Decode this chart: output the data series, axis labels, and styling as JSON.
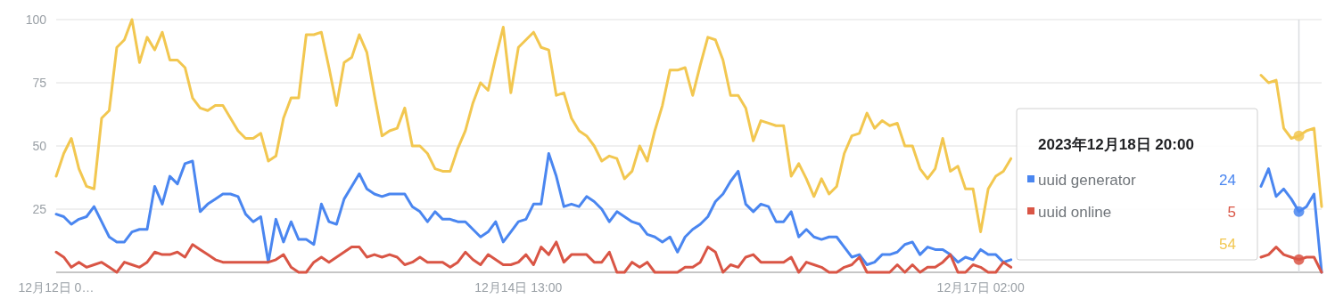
{
  "chart_data": {
    "type": "line",
    "x": [
      "2023-12-12T00:00",
      "2023-12-12T01:00",
      "2023-12-12T02:00",
      "2023-12-12T03:00",
      "2023-12-12T04:00",
      "2023-12-12T05:00",
      "2023-12-12T06:00",
      "2023-12-12T07:00",
      "2023-12-12T08:00",
      "2023-12-12T09:00",
      "2023-12-12T10:00",
      "2023-12-12T11:00",
      "2023-12-12T12:00",
      "2023-12-12T13:00",
      "2023-12-12T14:00",
      "2023-12-12T15:00",
      "2023-12-12T16:00",
      "2023-12-12T17:00",
      "2023-12-12T18:00",
      "2023-12-12T19:00",
      "2023-12-12T20:00",
      "2023-12-12T21:00",
      "2023-12-12T22:00",
      "2023-12-12T23:00",
      "2023-12-13T00:00",
      "2023-12-13T01:00",
      "2023-12-13T02:00",
      "2023-12-13T03:00",
      "2023-12-13T04:00",
      "2023-12-13T05:00",
      "2023-12-13T06:00",
      "2023-12-13T07:00",
      "2023-12-13T08:00",
      "2023-12-13T09:00",
      "2023-12-13T10:00",
      "2023-12-13T11:00",
      "2023-12-13T12:00",
      "2023-12-13T13:00",
      "2023-12-13T14:00",
      "2023-12-13T15:00",
      "2023-12-13T16:00",
      "2023-12-13T17:00",
      "2023-12-13T18:00",
      "2023-12-13T19:00",
      "2023-12-13T20:00",
      "2023-12-13T21:00",
      "2023-12-13T22:00",
      "2023-12-13T23:00",
      "2023-12-14T00:00",
      "2023-12-14T01:00",
      "2023-12-14T02:00",
      "2023-12-14T03:00",
      "2023-12-14T04:00",
      "2023-12-14T05:00",
      "2023-12-14T06:00",
      "2023-12-14T07:00",
      "2023-12-14T08:00",
      "2023-12-14T09:00",
      "2023-12-14T10:00",
      "2023-12-14T11:00",
      "2023-12-14T12:00",
      "2023-12-14T13:00",
      "2023-12-14T14:00",
      "2023-12-14T15:00",
      "2023-12-14T16:00",
      "2023-12-14T17:00",
      "2023-12-14T18:00",
      "2023-12-14T19:00",
      "2023-12-14T20:00",
      "2023-12-14T21:00",
      "2023-12-14T22:00",
      "2023-12-14T23:00",
      "2023-12-15T00:00",
      "2023-12-15T01:00",
      "2023-12-15T02:00",
      "2023-12-15T03:00",
      "2023-12-15T04:00",
      "2023-12-15T05:00",
      "2023-12-15T06:00",
      "2023-12-15T07:00",
      "2023-12-15T08:00",
      "2023-12-15T09:00",
      "2023-12-15T10:00",
      "2023-12-15T11:00",
      "2023-12-15T12:00",
      "2023-12-15T13:00",
      "2023-12-15T14:00",
      "2023-12-15T15:00",
      "2023-12-15T16:00",
      "2023-12-15T17:00",
      "2023-12-15T18:00",
      "2023-12-15T19:00",
      "2023-12-15T20:00",
      "2023-12-15T21:00",
      "2023-12-15T22:00",
      "2023-12-15T23:00",
      "2023-12-16T00:00",
      "2023-12-16T01:00",
      "2023-12-16T02:00",
      "2023-12-16T03:00",
      "2023-12-16T04:00",
      "2023-12-16T05:00",
      "2023-12-16T06:00",
      "2023-12-16T07:00",
      "2023-12-16T08:00",
      "2023-12-16T09:00",
      "2023-12-16T10:00",
      "2023-12-16T11:00",
      "2023-12-16T12:00",
      "2023-12-16T13:00",
      "2023-12-16T14:00",
      "2023-12-16T15:00",
      "2023-12-16T16:00",
      "2023-12-16T17:00",
      "2023-12-16T18:00",
      "2023-12-16T19:00",
      "2023-12-16T20:00",
      "2023-12-16T21:00",
      "2023-12-16T22:00",
      "2023-12-16T23:00",
      "2023-12-17T00:00",
      "2023-12-17T01:00",
      "2023-12-17T02:00",
      "2023-12-17T03:00",
      "2023-12-17T04:00",
      "2023-12-17T05:00",
      "2023-12-17T06:00",
      "2023-12-17T07:00",
      "2023-12-17T08:00",
      "2023-12-17T09:00",
      "2023-12-17T10:00",
      "2023-12-17T11:00",
      "2023-12-17T12:00",
      "2023-12-17T13:00",
      "2023-12-17T14:00",
      "2023-12-17T15:00",
      "2023-12-17T16:00",
      "2023-12-17T17:00",
      "2023-12-17T18:00",
      "2023-12-17T19:00",
      "2023-12-17T20:00",
      "2023-12-17T21:00",
      "2023-12-17T22:00",
      "2023-12-17T23:00",
      "2023-12-18T00:00",
      "2023-12-18T01:00",
      "2023-12-18T02:00",
      "2023-12-18T03:00",
      "2023-12-18T04:00",
      "2023-12-18T05:00",
      "2023-12-18T06:00",
      "2023-12-18T07:00",
      "2023-12-18T08:00",
      "2023-12-18T09:00",
      "2023-12-18T10:00",
      "2023-12-18T11:00",
      "2023-12-18T12:00",
      "2023-12-18T13:00",
      "2023-12-18T14:00",
      "2023-12-18T15:00",
      "2023-12-18T16:00",
      "2023-12-18T17:00",
      "2023-12-18T18:00",
      "2023-12-18T19:00",
      "2023-12-18T20:00",
      "2023-12-18T21:00",
      "2023-12-18T22:00",
      "2023-12-18T23:00"
    ],
    "series": [
      {
        "name": "uuid generator",
        "color": "#4a86f0",
        "values": [
          23,
          22,
          19,
          21,
          22,
          26,
          20,
          14,
          12,
          12,
          16,
          17,
          17,
          34,
          27,
          38,
          35,
          43,
          44,
          24,
          27,
          29,
          31,
          31,
          30,
          23,
          20,
          22,
          4,
          21,
          12,
          20,
          13,
          13,
          11,
          27,
          20,
          19,
          29,
          34,
          39,
          33,
          31,
          30,
          31,
          31,
          31,
          26,
          24,
          20,
          24,
          21,
          21,
          20,
          20,
          17,
          14,
          16,
          20,
          12,
          16,
          20,
          21,
          27,
          27,
          47,
          38,
          26,
          27,
          26,
          30,
          28,
          25,
          20,
          24,
          22,
          20,
          19,
          15,
          14,
          12,
          14,
          8,
          14,
          17,
          19,
          22,
          28,
          31,
          36,
          40,
          27,
          24,
          27,
          26,
          20,
          20,
          24,
          14,
          17,
          14,
          13,
          14,
          14,
          10,
          6,
          7,
          3,
          4,
          7,
          7,
          8,
          11,
          12,
          7,
          10,
          9,
          9,
          7,
          4,
          6,
          5,
          9,
          7,
          7,
          4,
          5,
          null,
          null,
          null,
          null,
          null,
          null,
          null,
          null,
          null,
          null,
          null,
          null,
          null,
          null,
          null,
          null,
          null,
          null,
          null,
          null,
          null,
          null,
          null,
          null,
          null,
          null,
          null,
          null,
          null,
          null,
          null,
          null,
          34,
          41,
          30,
          33,
          29,
          24,
          26,
          31,
          0
        ]
      },
      {
        "name": "uuid online",
        "color": "#d95545",
        "values": [
          8,
          6,
          2,
          4,
          2,
          3,
          4,
          2,
          0,
          4,
          3,
          2,
          4,
          8,
          7,
          7,
          8,
          6,
          11,
          9,
          7,
          5,
          4,
          4,
          4,
          4,
          4,
          4,
          4,
          5,
          7,
          2,
          0,
          0,
          4,
          6,
          4,
          6,
          8,
          10,
          10,
          6,
          7,
          6,
          7,
          6,
          3,
          4,
          6,
          4,
          4,
          4,
          2,
          4,
          8,
          5,
          3,
          7,
          5,
          3,
          3,
          4,
          7,
          3,
          10,
          7,
          12,
          4,
          7,
          7,
          7,
          4,
          4,
          8,
          0,
          0,
          4,
          2,
          4,
          0,
          0,
          0,
          0,
          2,
          2,
          4,
          10,
          8,
          0,
          3,
          2,
          6,
          7,
          4,
          4,
          4,
          4,
          6,
          0,
          4,
          3,
          2,
          0,
          0,
          2,
          3,
          6,
          0,
          0,
          0,
          0,
          3,
          0,
          3,
          0,
          2,
          2,
          4,
          7,
          0,
          0,
          3,
          2,
          0,
          0,
          4,
          2,
          null,
          null,
          null,
          null,
          null,
          null,
          null,
          null,
          null,
          null,
          null,
          null,
          null,
          null,
          null,
          null,
          null,
          null,
          null,
          null,
          null,
          null,
          null,
          null,
          null,
          null,
          null,
          null,
          null,
          null,
          null,
          null,
          6,
          7,
          10,
          7,
          6,
          5,
          6,
          6,
          0
        ]
      },
      {
        "color": "#f2c750",
        "values": [
          38,
          47,
          53,
          41,
          34,
          33,
          61,
          64,
          89,
          92,
          100,
          83,
          93,
          88,
          95,
          84,
          84,
          81,
          69,
          65,
          64,
          66,
          66,
          61,
          56,
          53,
          53,
          55,
          44,
          46,
          61,
          69,
          69,
          94,
          94,
          95,
          81,
          66,
          83,
          85,
          94,
          87,
          70,
          54,
          56,
          57,
          65,
          50,
          50,
          47,
          41,
          40,
          40,
          49,
          56,
          67,
          75,
          72,
          85,
          97,
          71,
          89,
          92,
          95,
          89,
          88,
          70,
          71,
          61,
          56,
          54,
          50,
          44,
          46,
          45,
          37,
          40,
          50,
          44,
          56,
          66,
          80,
          80,
          81,
          70,
          82,
          93,
          92,
          84,
          70,
          70,
          65,
          52,
          60,
          59,
          58,
          58,
          38,
          43,
          37,
          30,
          37,
          31,
          34,
          47,
          54,
          55,
          63,
          57,
          60,
          58,
          59,
          50,
          50,
          41,
          37,
          41,
          53,
          40,
          42,
          33,
          33,
          16,
          33,
          38,
          40,
          45,
          null,
          null,
          null,
          null,
          null,
          null,
          null,
          null,
          null,
          null,
          null,
          null,
          null,
          null,
          null,
          null,
          null,
          null,
          null,
          null,
          null,
          null,
          null,
          null,
          null,
          null,
          null,
          null,
          null,
          null,
          null,
          null,
          78,
          75,
          76,
          57,
          53,
          54,
          56,
          57,
          26
        ]
      }
    ],
    "xlim": [
      "2023-12-12T00:00",
      "2023-12-18T23:00"
    ],
    "xticks": [
      {
        "value": "2023-12-12T00:00",
        "label": "12月12日 0…"
      },
      {
        "value": "2023-12-14T13:00",
        "label": "12月14日 13:00"
      },
      {
        "value": "2023-12-17T02:00",
        "label": "12月17日 02:00"
      }
    ],
    "ylim": [
      0,
      100
    ],
    "yticks": [
      {
        "value": 0,
        "label": null
      },
      25,
      50,
      75,
      100
    ],
    "grid": "y",
    "legend": "right",
    "ref_lines": [
      {
        "axis": "x",
        "value": "2023-12-18T20:00",
        "color": "#dadce0"
      }
    ],
    "annotations": [
      "2023年12月18日 20:00",
      "24",
      "5",
      "54"
    ]
  }
}
